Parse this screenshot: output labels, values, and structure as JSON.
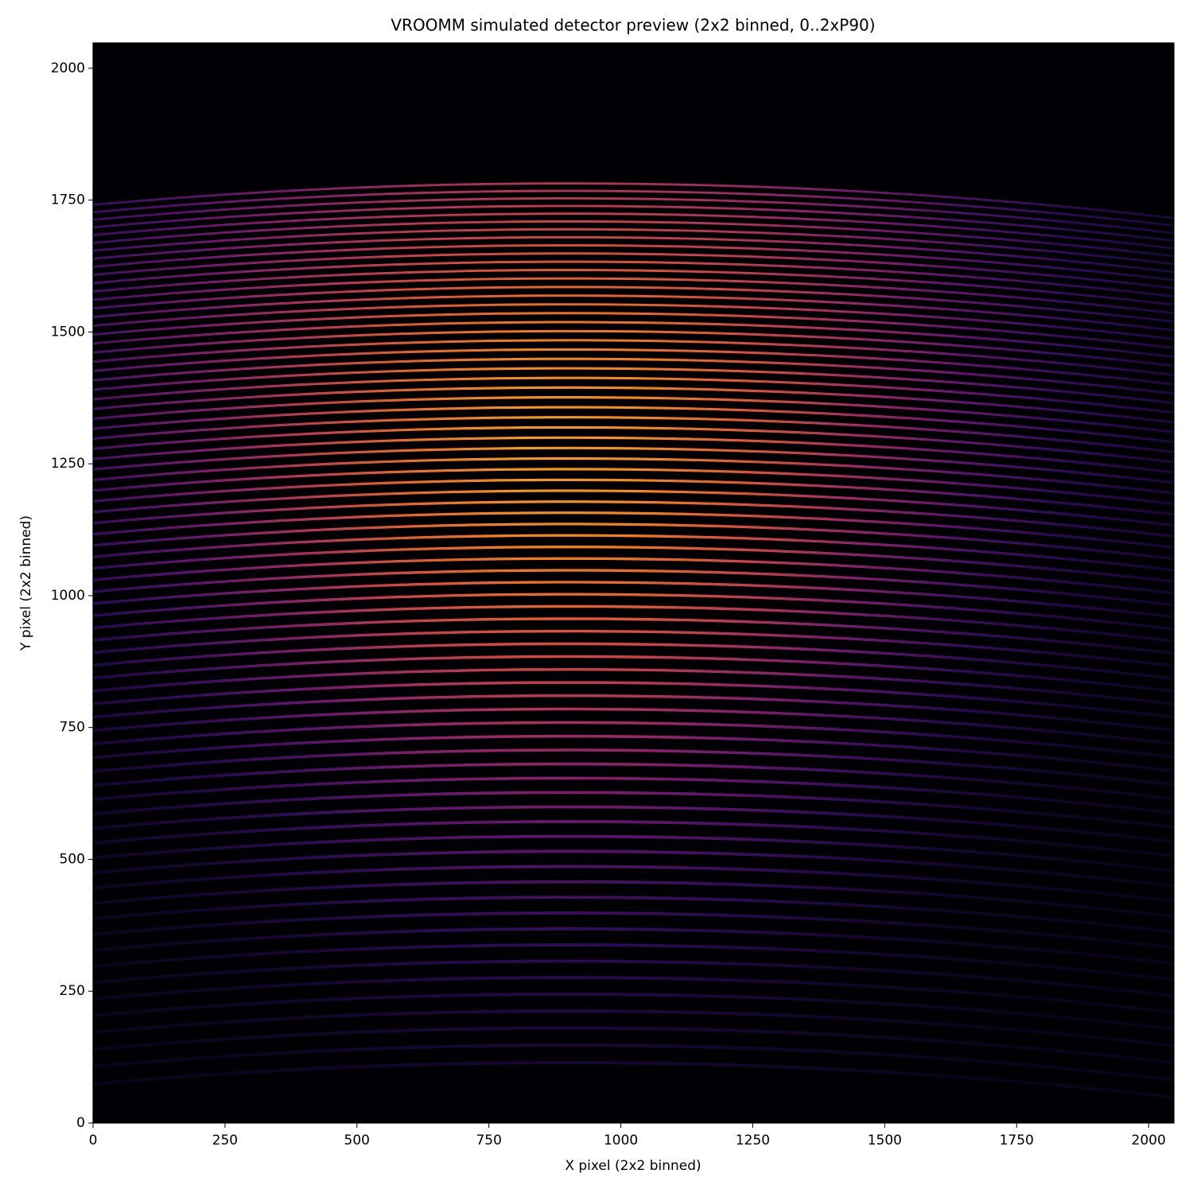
{
  "chart_data": {
    "type": "image",
    "title": "VROOMM simulated detector preview (2x2 binned, 0..2xP90)",
    "xlabel": "X pixel (2x2 binned)",
    "ylabel": "Y pixel (2x2 binned)",
    "colormap": "inferno",
    "xlim": [
      0,
      2048
    ],
    "ylim": [
      0,
      2048
    ],
    "xticks": [
      0,
      250,
      500,
      750,
      1000,
      1250,
      1500,
      1750,
      2000
    ],
    "yticks": [
      0,
      250,
      500,
      750,
      1000,
      1250,
      1500,
      1750,
      2000
    ]
  }
}
